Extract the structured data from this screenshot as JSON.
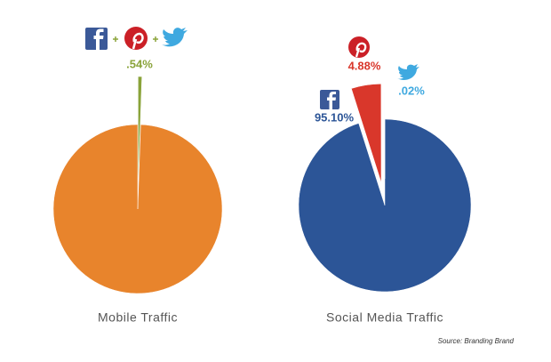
{
  "chart_data": [
    {
      "type": "pie",
      "title": "Mobile Traffic",
      "values": [
        0.54,
        99.46
      ],
      "value_labels": [
        ".54%",
        null
      ],
      "colors": [
        "#8aa33a",
        "#e8842c"
      ]
    },
    {
      "type": "pie",
      "title": "Social Media Traffic",
      "values": [
        95.1,
        4.88,
        0.02
      ],
      "value_labels": [
        "95.10%",
        "4.88%",
        ".02%"
      ],
      "colors": [
        "#2c5597",
        "#d9372b",
        "#3fa9e0"
      ]
    }
  ],
  "source": "Source: Branding Brand"
}
